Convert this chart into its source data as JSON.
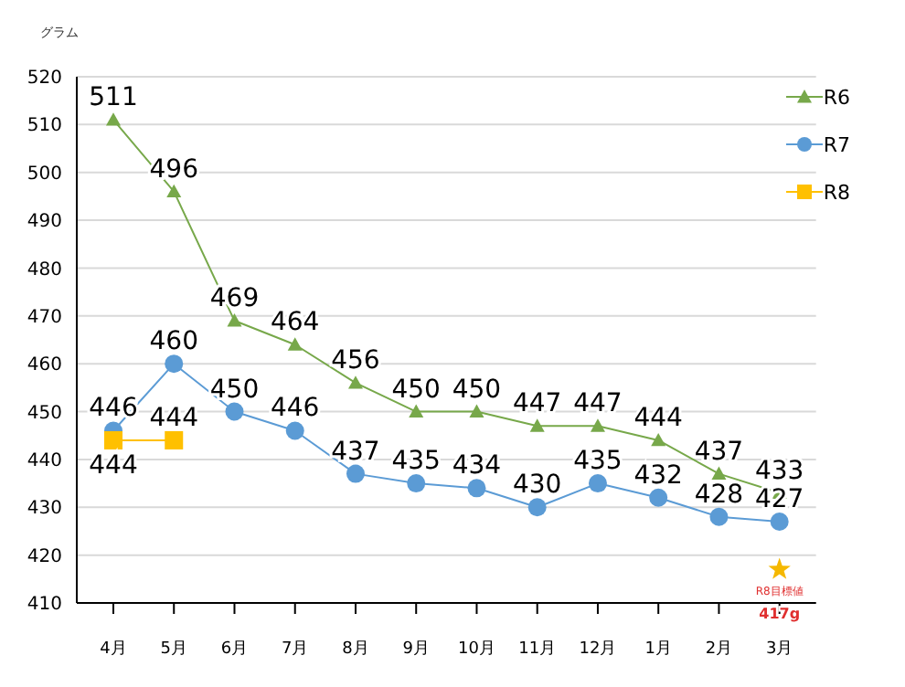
{
  "chart_data": {
    "type": "line",
    "ylabel": "グラム",
    "categories": [
      "4月",
      "5月",
      "6月",
      "7月",
      "8月",
      "9月",
      "10月",
      "11月",
      "12月",
      "1月",
      "2月",
      "3月"
    ],
    "series": [
      {
        "name": "R6",
        "color": "#77a84a",
        "marker": "triangle",
        "values": [
          511,
          496,
          469,
          464,
          456,
          450,
          450,
          447,
          447,
          444,
          437,
          433
        ]
      },
      {
        "name": "R7",
        "color": "#5b9bd5",
        "marker": "circle",
        "values": [
          446,
          460,
          450,
          446,
          437,
          435,
          434,
          430,
          435,
          432,
          428,
          427
        ]
      },
      {
        "name": "R8",
        "color": "#ffc000",
        "marker": "square",
        "values": [
          444,
          444,
          null,
          null,
          null,
          null,
          null,
          null,
          null,
          null,
          null,
          null
        ]
      },
      {
        "name": "R8目標値",
        "type": "scatter",
        "color": "#f5b800",
        "marker": "star",
        "values": [
          null,
          null,
          null,
          null,
          null,
          null,
          null,
          null,
          null,
          null,
          null,
          417
        ],
        "value_labels": [
          null,
          null,
          null,
          null,
          null,
          null,
          null,
          null,
          null,
          null,
          null,
          "417g"
        ]
      }
    ],
    "ylim": [
      410,
      520
    ],
    "yticks": [
      410,
      420,
      430,
      440,
      450,
      460,
      470,
      480,
      490,
      500,
      510,
      520
    ],
    "grid": "y",
    "legend": "top right",
    "data_labels": true
  }
}
